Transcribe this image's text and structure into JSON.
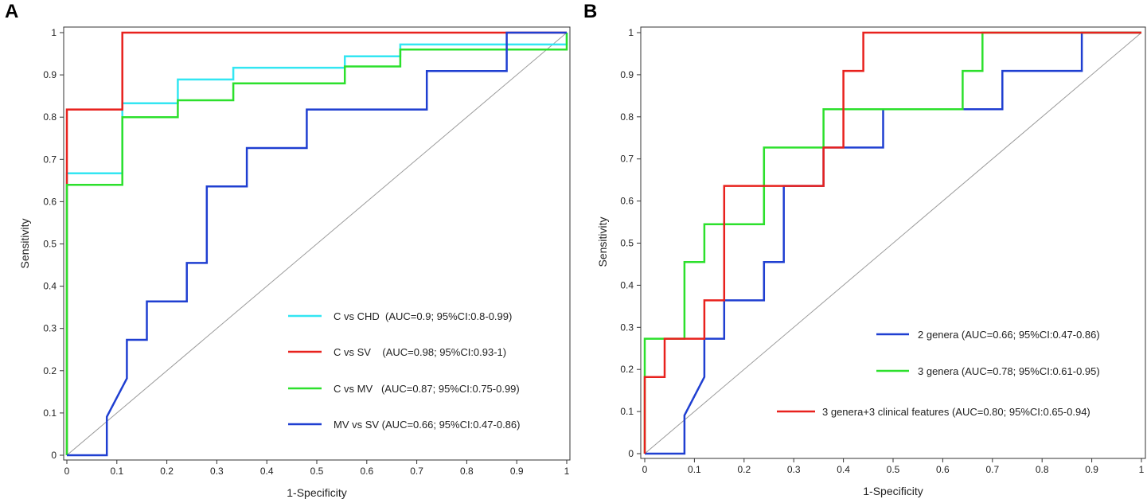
{
  "chart_data": [
    {
      "panel": "A",
      "type": "line",
      "xlabel": "1-Specificity",
      "ylabel": "Sensitivity",
      "xlim": [
        0,
        1
      ],
      "ylim": [
        0,
        1
      ],
      "xticks": [
        "0",
        "0.1",
        "0.2",
        "0.3",
        "0.4",
        "0.5",
        "0.6",
        "0.7",
        "0.8",
        "0.9",
        "1"
      ],
      "yticks": [
        "0",
        "0.1",
        "0.2",
        "0.3",
        "0.4",
        "0.5",
        "0.6",
        "0.7",
        "0.8",
        "0.9",
        "1"
      ],
      "reference_line": {
        "x": [
          0,
          1
        ],
        "y": [
          0,
          1
        ],
        "color": "#9a9a9a"
      },
      "series": [
        {
          "name": "C vs CHD  (AUC=0.9; 95%CI:0.8-0.99)",
          "color": "#33e6f2",
          "x": [
            0,
            0,
            0.111,
            0.111,
            0.222,
            0.222,
            0.333,
            0.333,
            0.556,
            0.556,
            0.667,
            0.667,
            1,
            1
          ],
          "y": [
            0,
            0.667,
            0.667,
            0.833,
            0.833,
            0.889,
            0.889,
            0.917,
            0.917,
            0.944,
            0.944,
            0.972,
            0.972,
            1
          ]
        },
        {
          "name": "C vs SV    (AUC=0.98; 95%CI:0.93-1)",
          "color": "#e8211d",
          "x": [
            0,
            0,
            0.111,
            0.111,
            1
          ],
          "y": [
            0,
            0.818,
            0.818,
            1,
            1
          ]
        },
        {
          "name": "C vs MV   (AUC=0.87; 95%CI:0.75-0.99)",
          "color": "#2ce02c",
          "x": [
            0,
            0,
            0.111,
            0.111,
            0.222,
            0.222,
            0.333,
            0.333,
            0.556,
            0.556,
            0.667,
            0.667,
            1,
            1
          ],
          "y": [
            0,
            0.64,
            0.64,
            0.8,
            0.8,
            0.84,
            0.84,
            0.88,
            0.88,
            0.92,
            0.92,
            0.96,
            0.96,
            1
          ]
        },
        {
          "name": "MV vs SV (AUC=0.66; 95%CI:0.47-0.86)",
          "color": "#1f3fd1",
          "x": [
            0,
            0.08,
            0.08,
            0.12,
            0.12,
            0.16,
            0.16,
            0.24,
            0.24,
            0.28,
            0.28,
            0.36,
            0.36,
            0.48,
            0.48,
            0.72,
            0.72,
            0.88,
            0.88,
            1
          ],
          "y": [
            0,
            0,
            0.091,
            0.182,
            0.273,
            0.273,
            0.364,
            0.364,
            0.455,
            0.455,
            0.636,
            0.636,
            0.727,
            0.727,
            0.818,
            0.818,
            0.909,
            0.909,
            1,
            1
          ]
        }
      ],
      "legend_position": "bottom-right"
    },
    {
      "panel": "B",
      "type": "line",
      "xlabel": "1-Specificity",
      "ylabel": "Sensitivity",
      "xlim": [
        0,
        1
      ],
      "ylim": [
        0,
        1
      ],
      "xticks": [
        "0",
        "0.1",
        "0.2",
        "0.3",
        "0.4",
        "0.5",
        "0.6",
        "0.7",
        "0.8",
        "0.9",
        "1"
      ],
      "yticks": [
        "0",
        "0.1",
        "0.2",
        "0.3",
        "0.4",
        "0.5",
        "0.6",
        "0.7",
        "0.8",
        "0.9",
        "1"
      ],
      "reference_line": {
        "x": [
          0,
          1
        ],
        "y": [
          0,
          1
        ],
        "color": "#9a9a9a"
      },
      "series": [
        {
          "name": "2 genera (AUC=0.66; 95%CI:0.47-0.86)",
          "color": "#1f3fd1",
          "x": [
            0,
            0.08,
            0.08,
            0.12,
            0.12,
            0.16,
            0.16,
            0.24,
            0.24,
            0.28,
            0.28,
            0.36,
            0.36,
            0.48,
            0.48,
            0.72,
            0.72,
            0.88,
            0.88,
            1
          ],
          "y": [
            0,
            0,
            0.091,
            0.182,
            0.273,
            0.273,
            0.364,
            0.364,
            0.455,
            0.455,
            0.636,
            0.636,
            0.727,
            0.727,
            0.818,
            0.818,
            0.909,
            0.909,
            1,
            1
          ]
        },
        {
          "name": "3 genera (AUC=0.78; 95%CI:0.61-0.95)",
          "color": "#2ce02c",
          "x": [
            0,
            0,
            0.08,
            0.08,
            0.12,
            0.12,
            0.24,
            0.24,
            0.36,
            0.36,
            0.64,
            0.64,
            0.68,
            0.68,
            1
          ],
          "y": [
            0,
            0.273,
            0.273,
            0.455,
            0.455,
            0.545,
            0.545,
            0.727,
            0.727,
            0.818,
            0.818,
            0.909,
            0.909,
            1,
            1
          ]
        },
        {
          "name": "3 genera+3 clinical features (AUC=0.80; 95%CI:0.65-0.94)",
          "color": "#e8211d",
          "x": [
            0,
            0,
            0.04,
            0.04,
            0.12,
            0.12,
            0.16,
            0.16,
            0.36,
            0.36,
            0.4,
            0.4,
            0.44,
            0.44,
            1
          ],
          "y": [
            0,
            0.182,
            0.182,
            0.273,
            0.273,
            0.364,
            0.364,
            0.636,
            0.636,
            0.727,
            0.727,
            0.909,
            0.909,
            1,
            1
          ]
        }
      ],
      "legend_position": "bottom-right"
    }
  ]
}
